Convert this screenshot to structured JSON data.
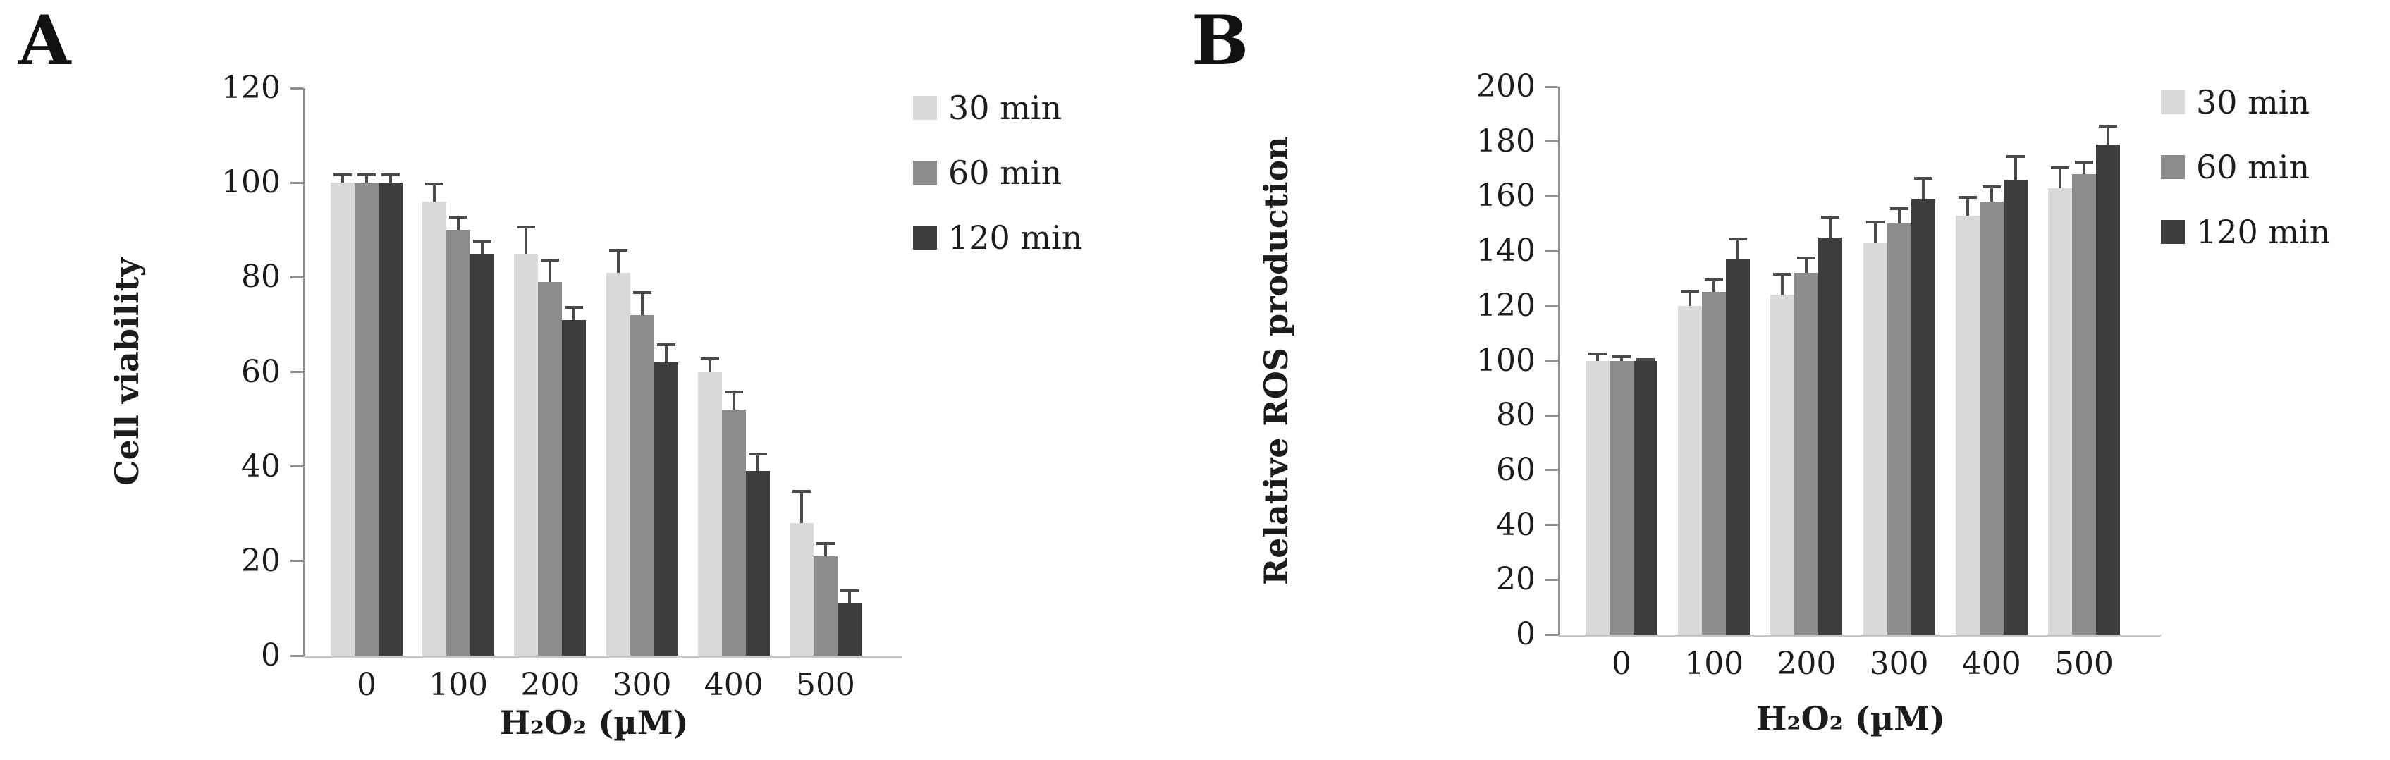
{
  "chart_data": [
    {
      "type": "bar",
      "panel_label": "A",
      "categories": [
        "0",
        "100",
        "200",
        "300",
        "400",
        "500"
      ],
      "series": [
        {
          "name": "30 min",
          "values": [
            100,
            96,
            85,
            81,
            60,
            28
          ],
          "errors": [
            2,
            4,
            6,
            5,
            3,
            7
          ]
        },
        {
          "name": "60 min",
          "values": [
            100,
            90,
            79,
            72,
            52,
            21
          ],
          "errors": [
            2,
            3,
            5,
            5,
            4,
            3
          ]
        },
        {
          "name": "120 min",
          "values": [
            100,
            85,
            71,
            62,
            39,
            11
          ],
          "errors": [
            2,
            3,
            3,
            4,
            4,
            3
          ]
        }
      ],
      "xlabel": "H₂O₂ (µM)",
      "ylabel": "Cell viability",
      "ylim": [
        0,
        120
      ],
      "yticks": [
        0,
        20,
        40,
        60,
        80,
        100,
        120
      ],
      "grid": "off",
      "legend_position": "top-right",
      "colors": {
        "series": [
          "#d9d9d9",
          "#8c8c8c",
          "#3d3d3d"
        ],
        "error": "#4a4a4a",
        "y_axis": "#8f8f8f",
        "baseline": "#c6c6c6",
        "text": "#1c1c1c"
      }
    },
    {
      "type": "bar",
      "panel_label": "B",
      "categories": [
        "0",
        "100",
        "200",
        "300",
        "400",
        "500"
      ],
      "series": [
        {
          "name": "30 min",
          "values": [
            100,
            120,
            124,
            143,
            153,
            163
          ],
          "errors": [
            3,
            6,
            8,
            8,
            7,
            8
          ]
        },
        {
          "name": "60 min",
          "values": [
            100,
            125,
            132,
            150,
            158,
            168
          ],
          "errors": [
            2,
            5,
            6,
            6,
            6,
            5
          ]
        },
        {
          "name": "120 min",
          "values": [
            100,
            137,
            145,
            159,
            166,
            179
          ],
          "errors": [
            1,
            8,
            8,
            8,
            9,
            7
          ]
        }
      ],
      "xlabel": "H₂O₂ (µM)",
      "ylabel": "Relative ROS production",
      "ylim": [
        0,
        200
      ],
      "yticks": [
        0,
        20,
        40,
        60,
        80,
        100,
        120,
        140,
        160,
        180,
        200
      ],
      "grid": "off",
      "legend_position": "right",
      "colors": {
        "series": [
          "#d9d9d9",
          "#8c8c8c",
          "#3d3d3d"
        ],
        "error": "#4a4a4a",
        "y_axis": "#8f8f8f",
        "baseline": "#c6c6c6",
        "text": "#1c1c1c"
      }
    }
  ]
}
